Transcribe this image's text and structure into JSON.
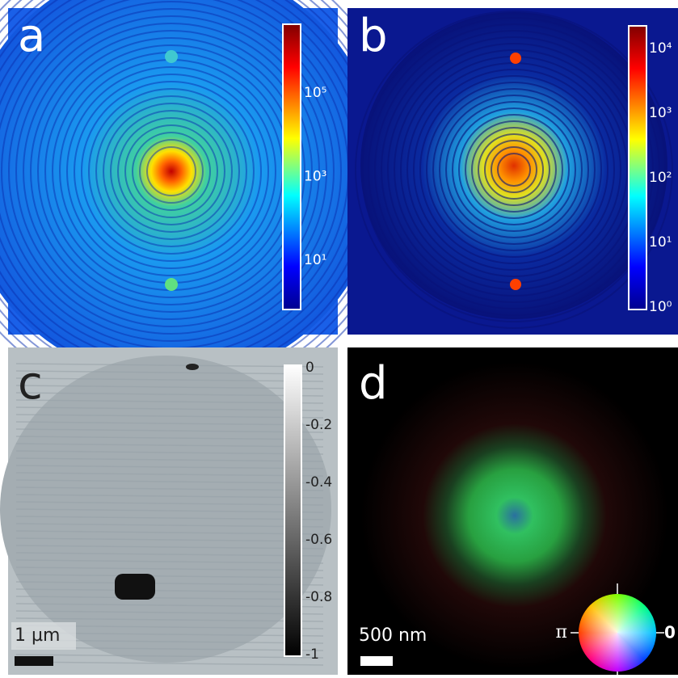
{
  "panels": [
    {
      "label": "a",
      "colorbar": [
        "10⁵",
        "10³",
        "10¹"
      ]
    },
    {
      "label": "b",
      "colorbar": [
        "10⁴",
        "10³",
        "10²",
        "10¹",
        "10⁰"
      ]
    },
    {
      "label": "c",
      "colorbar": [
        "0",
        "-0.2",
        "-0.4",
        "-0.6",
        "-0.8",
        "-1"
      ],
      "scalebar": "1 µm"
    },
    {
      "label": "d",
      "scalebar": "500 nm",
      "wheel": [
        "π",
        "0"
      ]
    }
  ]
}
